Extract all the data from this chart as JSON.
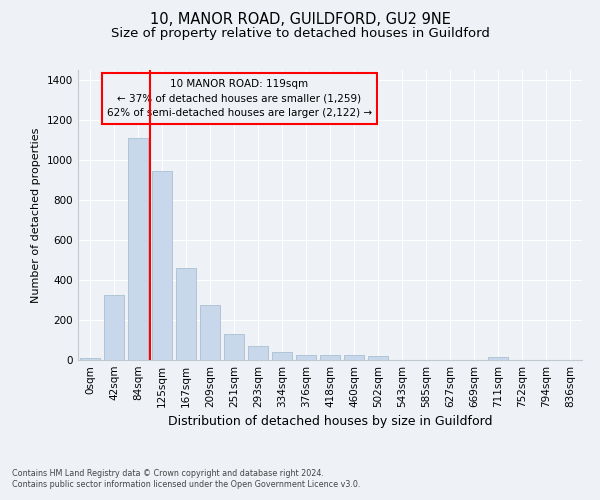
{
  "title": "10, MANOR ROAD, GUILDFORD, GU2 9NE",
  "subtitle": "Size of property relative to detached houses in Guildford",
  "xlabel": "Distribution of detached houses by size in Guildford",
  "ylabel": "Number of detached properties",
  "footnote1": "Contains HM Land Registry data © Crown copyright and database right 2024.",
  "footnote2": "Contains public sector information licensed under the Open Government Licence v3.0.",
  "bar_labels": [
    "0sqm",
    "42sqm",
    "84sqm",
    "125sqm",
    "167sqm",
    "209sqm",
    "251sqm",
    "293sqm",
    "334sqm",
    "376sqm",
    "418sqm",
    "460sqm",
    "502sqm",
    "543sqm",
    "585sqm",
    "627sqm",
    "669sqm",
    "711sqm",
    "752sqm",
    "794sqm",
    "836sqm"
  ],
  "bar_values": [
    10,
    325,
    1110,
    945,
    460,
    275,
    130,
    70,
    40,
    25,
    25,
    25,
    18,
    0,
    0,
    0,
    0,
    15,
    0,
    0,
    0
  ],
  "bar_color": "#c8d8ea",
  "bar_edge_color": "#a8c0d0",
  "vline_x": 2.5,
  "vline_color": "red",
  "annotation_title": "10 MANOR ROAD: 119sqm",
  "annotation_line1": "← 37% of detached houses are smaller (1,259)",
  "annotation_line2": "62% of semi-detached houses are larger (2,122) →",
  "annotation_box_color": "red",
  "ylim": [
    0,
    1450
  ],
  "yticks": [
    0,
    200,
    400,
    600,
    800,
    1000,
    1200,
    1400
  ],
  "bg_color": "#eef2f7",
  "grid_color": "#ffffff",
  "title_fontsize": 10.5,
  "subtitle_fontsize": 9.5,
  "tick_fontsize": 7.5,
  "ylabel_fontsize": 8,
  "xlabel_fontsize": 9
}
